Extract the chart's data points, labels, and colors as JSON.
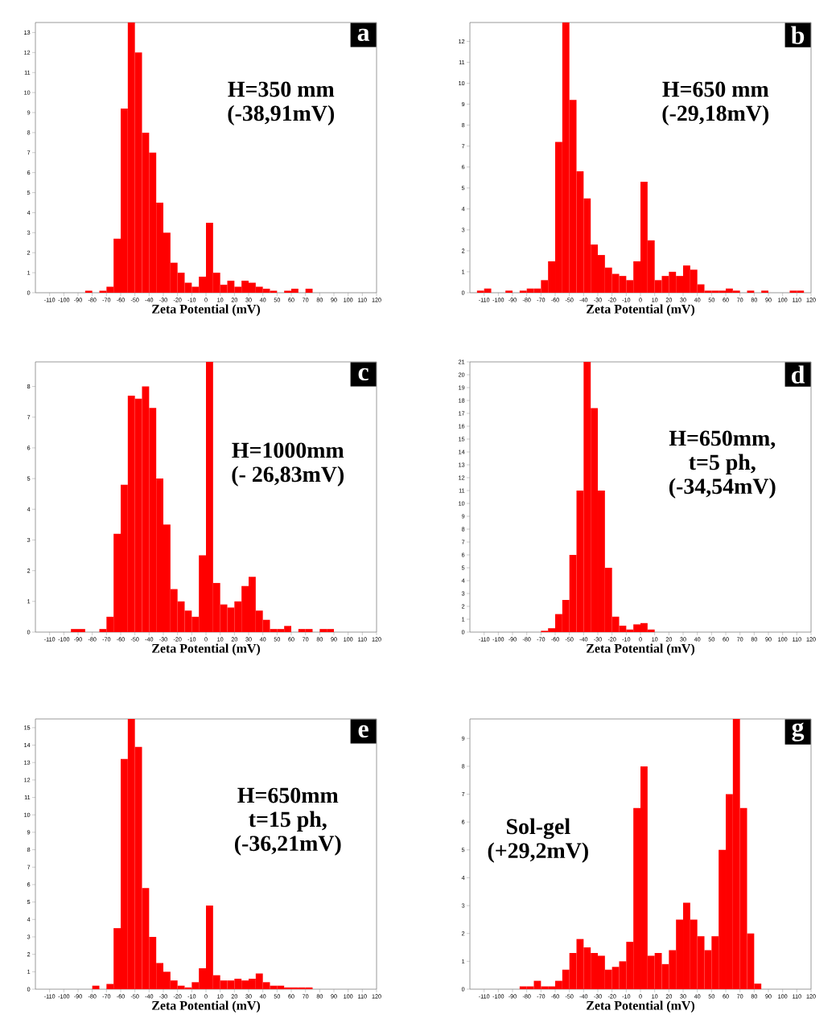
{
  "chart_data": [
    {
      "type": "histogram",
      "xlabel": "Zeta Potential (mV)",
      "color": "#ff0000",
      "xlim": [
        -120,
        120
      ],
      "ylim": [
        0,
        13.5
      ],
      "xticks": [
        -110,
        -100,
        -90,
        -80,
        -70,
        -60,
        -50,
        -40,
        -30,
        -20,
        -10,
        0,
        10,
        20,
        30,
        40,
        50,
        60,
        70,
        80,
        90,
        100,
        110,
        120
      ],
      "yticks": [
        0,
        1,
        2,
        3,
        4,
        5,
        6,
        7,
        8,
        9,
        10,
        11,
        12,
        13
      ],
      "bins": [
        -120,
        -115,
        -110,
        -105,
        -100,
        -95,
        -90,
        -85,
        -80,
        -75,
        -70,
        -65,
        -60,
        -55,
        -50,
        -45,
        -40,
        -35,
        -30,
        -25,
        -20,
        -15,
        -10,
        -5,
        0,
        5,
        10,
        15,
        20,
        25,
        30,
        35,
        40,
        45,
        50,
        55,
        60,
        65,
        70,
        75,
        80,
        85,
        90,
        95,
        100,
        105,
        110,
        115,
        120
      ],
      "values": [
        0,
        0,
        0,
        0,
        0,
        0,
        0,
        0.1,
        0,
        0.1,
        0.3,
        2.7,
        9.2,
        13.5,
        12,
        8,
        7,
        4.5,
        3,
        1.5,
        1,
        0.5,
        0.3,
        0.8,
        3.5,
        1,
        0.4,
        0.6,
        0.3,
        0.6,
        0.5,
        0.3,
        0.2,
        0.1,
        0,
        0.1,
        0.2,
        0,
        0.2,
        0,
        0,
        0,
        0,
        0,
        0,
        0,
        0,
        0
      ],
      "annotations": [
        "a",
        "H=350 mm",
        "(-38,91mV)"
      ]
    },
    {
      "type": "histogram",
      "xlabel": "Zeta Potential (mV)",
      "color": "#ff0000",
      "xlim": [
        -120,
        120
      ],
      "ylim": [
        0,
        12.9
      ],
      "xticks": [
        -110,
        -100,
        -90,
        -80,
        -70,
        -60,
        -50,
        -40,
        -30,
        -20,
        -10,
        0,
        10,
        20,
        30,
        40,
        50,
        60,
        70,
        80,
        90,
        100,
        110,
        120
      ],
      "yticks": [
        0,
        1,
        2,
        3,
        4,
        5,
        6,
        7,
        8,
        9,
        10,
        11,
        12
      ],
      "bins": [
        -120,
        -115,
        -110,
        -105,
        -100,
        -95,
        -90,
        -85,
        -80,
        -75,
        -70,
        -65,
        -60,
        -55,
        -50,
        -45,
        -40,
        -35,
        -30,
        -25,
        -20,
        -15,
        -10,
        -5,
        0,
        5,
        10,
        15,
        20,
        25,
        30,
        35,
        40,
        45,
        50,
        55,
        60,
        65,
        70,
        75,
        80,
        85,
        90,
        95,
        100,
        105,
        110,
        115,
        120
      ],
      "values": [
        0,
        0.1,
        0.2,
        0,
        0,
        0.1,
        0,
        0.1,
        0.2,
        0.2,
        0.6,
        1.5,
        7.2,
        12.9,
        9.2,
        5.8,
        4.5,
        2.3,
        1.8,
        1.2,
        0.9,
        0.8,
        0.6,
        1.5,
        5.3,
        2.5,
        0.6,
        0.8,
        1,
        0.8,
        1.3,
        1.1,
        0.4,
        0.1,
        0.1,
        0.1,
        0.2,
        0.1,
        0,
        0.1,
        0,
        0.1,
        0,
        0,
        0,
        0.1,
        0.1,
        0
      ],
      "annotations": [
        "b",
        "H=650 mm",
        "(-29,18mV)"
      ]
    },
    {
      "type": "histogram",
      "xlabel": "Zeta Potential (mV)",
      "color": "#ff0000",
      "xlim": [
        -120,
        120
      ],
      "ylim": [
        0,
        8.8
      ],
      "xticks": [
        -110,
        -100,
        -90,
        -80,
        -70,
        -60,
        -50,
        -40,
        -30,
        -20,
        -10,
        0,
        10,
        20,
        30,
        40,
        50,
        60,
        70,
        80,
        90,
        100,
        110,
        120
      ],
      "yticks": [
        0,
        1,
        2,
        3,
        4,
        5,
        6,
        7,
        8
      ],
      "bins": [
        -120,
        -115,
        -110,
        -105,
        -100,
        -95,
        -90,
        -85,
        -80,
        -75,
        -70,
        -65,
        -60,
        -55,
        -50,
        -45,
        -40,
        -35,
        -30,
        -25,
        -20,
        -15,
        -10,
        -5,
        0,
        5,
        10,
        15,
        20,
        25,
        30,
        35,
        40,
        45,
        50,
        55,
        60,
        65,
        70,
        75,
        80,
        85,
        90,
        95,
        100,
        105,
        110,
        115,
        120
      ],
      "values": [
        0,
        0,
        0,
        0,
        0,
        0.1,
        0.1,
        0,
        0,
        0.1,
        0.5,
        3.2,
        4.8,
        7.7,
        7.6,
        8,
        7.3,
        5,
        3.5,
        1.4,
        1,
        0.7,
        0.5,
        2.5,
        8.8,
        1.6,
        0.9,
        0.8,
        1,
        1.5,
        1.8,
        0.7,
        0.4,
        0.1,
        0.1,
        0.2,
        0,
        0.1,
        0.1,
        0,
        0.1,
        0.1,
        0,
        0,
        0,
        0,
        0,
        0
      ],
      "annotations": [
        "c",
        "H=1000mm",
        "(- 26,83mV)"
      ]
    },
    {
      "type": "histogram",
      "xlabel": "Zeta Potential (mV)",
      "color": "#ff0000",
      "xlim": [
        -120,
        120
      ],
      "ylim": [
        0,
        21
      ],
      "xticks": [
        -110,
        -100,
        -90,
        -80,
        -70,
        -60,
        -50,
        -40,
        -30,
        -20,
        -10,
        0,
        10,
        20,
        30,
        40,
        50,
        60,
        70,
        80,
        90,
        100,
        110,
        120
      ],
      "yticks": [
        0,
        1,
        2,
        3,
        4,
        5,
        6,
        7,
        8,
        9,
        10,
        11,
        12,
        13,
        14,
        15,
        16,
        17,
        18,
        19,
        20,
        21
      ],
      "bins": [
        -120,
        -115,
        -110,
        -105,
        -100,
        -95,
        -90,
        -85,
        -80,
        -75,
        -70,
        -65,
        -60,
        -55,
        -50,
        -45,
        -40,
        -35,
        -30,
        -25,
        -20,
        -15,
        -10,
        -5,
        0,
        5,
        10,
        15,
        20,
        25,
        30,
        35,
        40,
        45,
        50,
        55,
        60,
        65,
        70,
        75,
        80,
        85,
        90,
        95,
        100,
        105,
        110,
        115,
        120
      ],
      "values": [
        0,
        0,
        0,
        0,
        0,
        0,
        0,
        0,
        0,
        0,
        0.1,
        0.3,
        1.4,
        2.5,
        6,
        11,
        21,
        17.4,
        11,
        5,
        1.2,
        0.5,
        0.2,
        0.6,
        0.7,
        0.2,
        0,
        0,
        0,
        0,
        0,
        0,
        0,
        0,
        0,
        0,
        0,
        0,
        0,
        0,
        0,
        0,
        0,
        0,
        0,
        0,
        0,
        0
      ],
      "annotations": [
        "d",
        "H=650mm,",
        "t=5 ph,",
        "(-34,54mV)"
      ]
    },
    {
      "type": "histogram",
      "xlabel": "Zeta Potential (mV)",
      "color": "#ff0000",
      "xlim": [
        -120,
        120
      ],
      "ylim": [
        0,
        15.5
      ],
      "xticks": [
        -110,
        -100,
        -90,
        -80,
        -70,
        -60,
        -50,
        -40,
        -30,
        -20,
        -10,
        0,
        10,
        20,
        30,
        40,
        50,
        60,
        70,
        80,
        90,
        100,
        110,
        120
      ],
      "yticks": [
        0,
        1,
        2,
        3,
        4,
        5,
        6,
        7,
        8,
        9,
        10,
        11,
        12,
        13,
        14,
        15
      ],
      "bins": [
        -120,
        -115,
        -110,
        -105,
        -100,
        -95,
        -90,
        -85,
        -80,
        -75,
        -70,
        -65,
        -60,
        -55,
        -50,
        -45,
        -40,
        -35,
        -30,
        -25,
        -20,
        -15,
        -10,
        -5,
        0,
        5,
        10,
        15,
        20,
        25,
        30,
        35,
        40,
        45,
        50,
        55,
        60,
        65,
        70,
        75,
        80,
        85,
        90,
        95,
        100,
        105,
        110,
        115,
        120
      ],
      "values": [
        0,
        0,
        0,
        0,
        0,
        0,
        0,
        0,
        0.2,
        0,
        0.3,
        3.5,
        13.2,
        15.5,
        13.9,
        5.8,
        3,
        1.5,
        1,
        0.5,
        0.2,
        0.1,
        0.4,
        1.2,
        4.8,
        0.8,
        0.5,
        0.5,
        0.6,
        0.5,
        0.6,
        0.9,
        0.4,
        0.2,
        0.2,
        0.1,
        0.1,
        0.1,
        0.1,
        0,
        0,
        0,
        0,
        0,
        0,
        0,
        0,
        0
      ],
      "annotations": [
        "e",
        "H=650mm",
        "t=15 ph,",
        "(-36,21mV)"
      ]
    },
    {
      "type": "histogram",
      "xlabel": "Zeta Potential (mV)",
      "color": "#ff0000",
      "xlim": [
        -120,
        120
      ],
      "ylim": [
        0,
        9.7
      ],
      "xticks": [
        -110,
        -100,
        -90,
        -80,
        -70,
        -60,
        -50,
        -40,
        -30,
        -20,
        -10,
        0,
        10,
        20,
        30,
        40,
        50,
        60,
        70,
        80,
        90,
        100,
        110,
        120
      ],
      "yticks": [
        0,
        1,
        2,
        3,
        4,
        5,
        6,
        7,
        8,
        9
      ],
      "bins": [
        -120,
        -115,
        -110,
        -105,
        -100,
        -95,
        -90,
        -85,
        -80,
        -75,
        -70,
        -65,
        -60,
        -55,
        -50,
        -45,
        -40,
        -35,
        -30,
        -25,
        -20,
        -15,
        -10,
        -5,
        0,
        5,
        10,
        15,
        20,
        25,
        30,
        35,
        40,
        45,
        50,
        55,
        60,
        65,
        70,
        75,
        80,
        85,
        90,
        95,
        100,
        105,
        110,
        115,
        120
      ],
      "values": [
        0,
        0,
        0,
        0,
        0,
        0,
        0,
        0.1,
        0.1,
        0.3,
        0.1,
        0.1,
        0.3,
        0.7,
        1.3,
        1.8,
        1.5,
        1.3,
        1.2,
        0.7,
        0.8,
        1,
        1.7,
        6.5,
        8,
        1.2,
        1.3,
        0.9,
        1.4,
        2.5,
        3.1,
        2.5,
        1.9,
        1.4,
        1.9,
        5,
        7,
        9.7,
        6.5,
        2,
        0.2,
        0,
        0,
        0,
        0,
        0,
        0,
        0
      ],
      "annotations": [
        "g",
        "Sol-gel",
        "(+29,2mV)"
      ]
    }
  ]
}
